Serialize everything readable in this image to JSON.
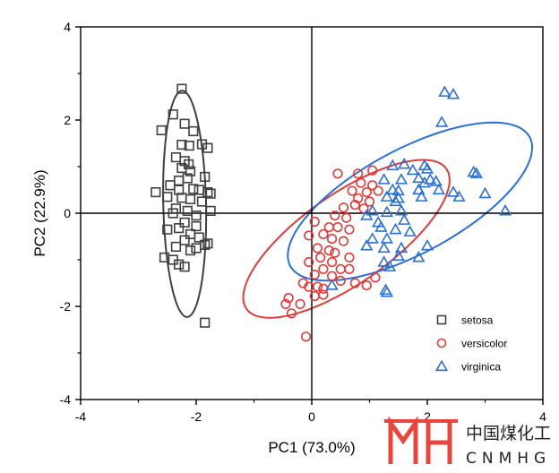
{
  "chart_data": {
    "type": "scatter",
    "title": "",
    "xlabel": "PC1 (73.0%)",
    "ylabel": "PC2 (22.9%)",
    "xlim": [
      -4,
      4
    ],
    "ylim": [
      -4,
      4
    ],
    "xticks": [
      "-4",
      "-2",
      "0",
      "2",
      "4"
    ],
    "yticks": [
      "-4",
      "-2",
      "0",
      "2",
      "4"
    ],
    "grid": false,
    "zero_lines": true,
    "legend_position": "bottom-right",
    "series": [
      {
        "name": "setosa",
        "marker": "square",
        "color": "#404040",
        "ellipse": {
          "cx": -2.2,
          "cy": 0.2,
          "semi_major": 2.43,
          "semi_minor": 0.37,
          "angle_deg": 91
        },
        "points": [
          [
            -2.25,
            2.67
          ],
          [
            -2.4,
            2.12
          ],
          [
            -2.6,
            1.78
          ],
          [
            -2.2,
            1.92
          ],
          [
            -2.05,
            1.76
          ],
          [
            -2.25,
            1.47
          ],
          [
            -2.12,
            1.45
          ],
          [
            -1.9,
            1.48
          ],
          [
            -1.8,
            1.4
          ],
          [
            -2.35,
            1.2
          ],
          [
            -2.2,
            1.12
          ],
          [
            -2.13,
            1.05
          ],
          [
            -2.25,
            0.97
          ],
          [
            -2.1,
            0.9
          ],
          [
            -2.3,
            0.7
          ],
          [
            -2.15,
            0.75
          ],
          [
            -1.85,
            0.78
          ],
          [
            -2.45,
            0.6
          ],
          [
            -2.3,
            0.5
          ],
          [
            -2.05,
            0.52
          ],
          [
            -1.95,
            0.5
          ],
          [
            -1.8,
            0.45
          ],
          [
            -1.75,
            0.42
          ],
          [
            -2.7,
            0.45
          ],
          [
            -2.5,
            0.35
          ],
          [
            -2.25,
            0.33
          ],
          [
            -2.1,
            0.3
          ],
          [
            -1.9,
            0.25
          ],
          [
            -2.35,
            0.1
          ],
          [
            -2.15,
            0.05
          ],
          [
            -2.4,
            0.0
          ],
          [
            -2.0,
            -0.05
          ],
          [
            -1.75,
            0.05
          ],
          [
            -2.2,
            -0.2
          ],
          [
            -2.0,
            -0.28
          ],
          [
            -2.5,
            -0.35
          ],
          [
            -2.3,
            -0.32
          ],
          [
            -2.1,
            -0.45
          ],
          [
            -1.95,
            -0.52
          ],
          [
            -2.2,
            -0.58
          ],
          [
            -1.85,
            -0.68
          ],
          [
            -2.35,
            -0.72
          ],
          [
            -2.1,
            -0.8
          ],
          [
            -2.0,
            -0.75
          ],
          [
            -2.55,
            -0.95
          ],
          [
            -2.4,
            -1.0
          ],
          [
            -2.3,
            -1.1
          ],
          [
            -2.2,
            -1.15
          ],
          [
            -1.8,
            -0.65
          ],
          [
            -1.85,
            -2.35
          ]
        ]
      },
      {
        "name": "versicolor",
        "marker": "circle",
        "color": "#e03b3b",
        "ellipse": {
          "cx": 0.6,
          "cy": -0.55,
          "semi_major": 2.3,
          "semi_minor": 0.88,
          "angle_deg": 43
        },
        "points": [
          [
            0.45,
            0.85
          ],
          [
            0.8,
            0.85
          ],
          [
            1.05,
            0.92
          ],
          [
            0.85,
            0.65
          ],
          [
            1.05,
            0.6
          ],
          [
            0.7,
            0.48
          ],
          [
            0.95,
            0.45
          ],
          [
            1.15,
            0.48
          ],
          [
            0.8,
            0.32
          ],
          [
            1.0,
            0.25
          ],
          [
            0.75,
            0.18
          ],
          [
            0.55,
            0.12
          ],
          [
            0.9,
            0.1
          ],
          [
            0.05,
            -0.18
          ],
          [
            0.4,
            -0.05
          ],
          [
            0.6,
            -0.1
          ],
          [
            0.3,
            -0.3
          ],
          [
            0.45,
            -0.3
          ],
          [
            0.65,
            -0.35
          ],
          [
            0.2,
            -0.45
          ],
          [
            -0.05,
            -0.48
          ],
          [
            0.35,
            -0.55
          ],
          [
            0.55,
            -0.6
          ],
          [
            0.1,
            -0.75
          ],
          [
            0.3,
            -0.8
          ],
          [
            0.4,
            -0.85
          ],
          [
            0.15,
            -0.95
          ],
          [
            -0.05,
            -1.05
          ],
          [
            0.35,
            -1.05
          ],
          [
            0.2,
            -1.2
          ],
          [
            0.05,
            -1.32
          ],
          [
            0.35,
            -1.35
          ],
          [
            0.5,
            -1.45
          ],
          [
            0.75,
            -1.5
          ],
          [
            0.95,
            -1.55
          ],
          [
            0.2,
            -1.75
          ],
          [
            -0.05,
            -1.58
          ],
          [
            -0.15,
            -1.5
          ],
          [
            0.1,
            -1.58
          ],
          [
            0.2,
            -1.62
          ],
          [
            0.05,
            -1.78
          ],
          [
            -0.2,
            -1.95
          ],
          [
            -0.4,
            -1.82
          ],
          [
            -0.45,
            -1.95
          ],
          [
            -0.35,
            -2.15
          ],
          [
            -0.1,
            -2.65
          ],
          [
            0.5,
            -1.2
          ],
          [
            0.65,
            -1.2
          ],
          [
            0.65,
            -0.95
          ],
          [
            1.1,
            -1.38
          ]
        ]
      },
      {
        "name": "virginica",
        "marker": "triangle",
        "color": "#2a6fd6",
        "ellipse": {
          "cx": 1.7,
          "cy": 0.25,
          "semi_major": 2.5,
          "semi_minor": 1.05,
          "angle_deg": 36
        },
        "points": [
          [
            2.3,
            2.6
          ],
          [
            2.45,
            2.55
          ],
          [
            2.25,
            1.95
          ],
          [
            1.4,
            1.02
          ],
          [
            1.6,
            1.05
          ],
          [
            1.95,
            1.02
          ],
          [
            2.0,
            0.95
          ],
          [
            1.75,
            0.92
          ],
          [
            2.8,
            0.88
          ],
          [
            2.85,
            0.85
          ],
          [
            1.25,
            0.72
          ],
          [
            1.55,
            0.72
          ],
          [
            1.85,
            0.75
          ],
          [
            2.05,
            0.72
          ],
          [
            2.15,
            0.68
          ],
          [
            1.95,
            0.65
          ],
          [
            1.4,
            0.5
          ],
          [
            1.5,
            0.48
          ],
          [
            1.85,
            0.5
          ],
          [
            2.2,
            0.5
          ],
          [
            2.45,
            0.45
          ],
          [
            3.0,
            0.42
          ],
          [
            1.3,
            0.35
          ],
          [
            1.5,
            0.32
          ],
          [
            1.9,
            0.35
          ],
          [
            2.55,
            0.35
          ],
          [
            1.45,
            0.25
          ],
          [
            1.05,
            0.05
          ],
          [
            1.3,
            0.02
          ],
          [
            1.55,
            0.05
          ],
          [
            0.95,
            -0.05
          ],
          [
            1.6,
            -0.15
          ],
          [
            1.15,
            -0.2
          ],
          [
            1.2,
            -0.3
          ],
          [
            1.45,
            -0.35
          ],
          [
            1.7,
            -0.4
          ],
          [
            1.05,
            -0.55
          ],
          [
            1.3,
            -0.55
          ],
          [
            0.95,
            -0.7
          ],
          [
            1.25,
            -0.75
          ],
          [
            1.55,
            -0.75
          ],
          [
            2.0,
            -0.7
          ],
          [
            1.85,
            -0.95
          ],
          [
            1.25,
            -1.05
          ],
          [
            1.35,
            -1.15
          ],
          [
            1.5,
            -0.92
          ],
          [
            1.3,
            -1.7
          ],
          [
            1.28,
            -1.65
          ],
          [
            0.35,
            -1.55
          ],
          [
            3.35,
            0.05
          ]
        ]
      }
    ]
  },
  "watermark": {
    "cn_text": "中国煤化工",
    "en_text": "CNMHG",
    "color": "#e8453c"
  }
}
